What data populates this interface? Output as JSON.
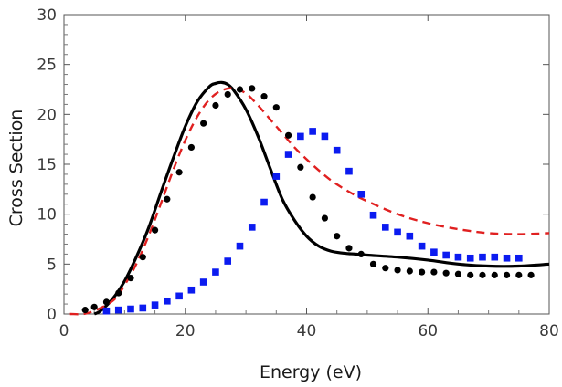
{
  "chart_data": {
    "type": "scatter",
    "title": "",
    "xlabel": "Energy (eV)",
    "ylabel": "Cross Section",
    "xlim": [
      0,
      80
    ],
    "ylim": [
      0,
      30
    ],
    "xticks": [
      0,
      20,
      40,
      60,
      80
    ],
    "yticks": [
      0,
      5,
      10,
      15,
      20,
      25,
      30
    ],
    "legend": "none",
    "grid": false,
    "series": [
      {
        "name": "black-solid-curve",
        "kind": "line",
        "color": "#000000",
        "dash": "solid",
        "x": [
          5,
          6,
          8,
          10,
          12,
          14,
          16,
          18,
          20,
          22,
          24,
          25,
          26,
          27,
          28,
          30,
          32,
          34,
          36,
          38,
          40,
          42,
          44,
          46,
          48,
          50,
          55,
          60,
          65,
          70,
          75,
          80
        ],
        "y": [
          0,
          0.3,
          1.5,
          3.3,
          5.8,
          8.7,
          12.2,
          15.6,
          18.8,
          21.3,
          22.8,
          23.1,
          23.2,
          23.0,
          22.4,
          20.5,
          17.8,
          14.6,
          11.5,
          9.4,
          7.8,
          6.8,
          6.3,
          6.1,
          6.0,
          5.9,
          5.7,
          5.4,
          5.0,
          4.8,
          4.8,
          5.0
        ]
      },
      {
        "name": "red-dashed-curve",
        "kind": "line",
        "color": "#e02020",
        "dash": "dashed",
        "x": [
          1,
          4,
          8,
          10,
          12,
          14,
          16,
          18,
          20,
          22,
          24,
          26,
          28,
          30,
          32,
          34,
          36,
          38,
          40,
          42,
          44,
          46,
          48,
          50,
          55,
          60,
          65,
          70,
          75,
          80
        ],
        "y": [
          0,
          0.1,
          1.3,
          2.9,
          5.1,
          7.9,
          11.1,
          14.4,
          17.4,
          19.8,
          21.5,
          22.4,
          22.6,
          22.1,
          20.9,
          19.5,
          18.1,
          16.7,
          15.5,
          14.4,
          13.4,
          12.6,
          11.9,
          11.3,
          10.0,
          9.1,
          8.5,
          8.1,
          8.0,
          8.1
        ]
      },
      {
        "name": "black-circle-points",
        "kind": "scatter",
        "marker": "circle",
        "color": "#000000",
        "x": [
          3.5,
          5,
          7,
          9,
          11,
          13,
          15,
          17,
          19,
          21,
          23,
          25,
          27,
          29,
          31,
          33,
          35,
          37,
          39,
          41,
          43,
          45,
          47,
          49,
          51,
          53,
          55,
          57,
          59,
          61,
          63,
          65,
          67,
          69,
          71,
          73,
          75,
          77
        ],
        "y": [
          0.4,
          0.7,
          1.2,
          2.1,
          3.6,
          5.7,
          8.4,
          11.5,
          14.2,
          16.7,
          19.1,
          20.9,
          22.0,
          22.5,
          22.6,
          21.8,
          20.7,
          17.9,
          14.7,
          11.7,
          9.6,
          7.8,
          6.6,
          6.0,
          5.0,
          4.6,
          4.4,
          4.3,
          4.2,
          4.2,
          4.1,
          4.0,
          3.9,
          3.9,
          3.9,
          3.9,
          3.9,
          3.9
        ]
      },
      {
        "name": "blue-square-points",
        "kind": "scatter",
        "marker": "square",
        "color": "#0b1bf0",
        "x": [
          7,
          9,
          11,
          13,
          15,
          17,
          19,
          21,
          23,
          25,
          27,
          29,
          31,
          33,
          35,
          37,
          39,
          41,
          43,
          45,
          47,
          49,
          51,
          53,
          55,
          57,
          59,
          61,
          63,
          65,
          67,
          69,
          71,
          73,
          75
        ],
        "y": [
          0.3,
          0.4,
          0.5,
          0.6,
          0.9,
          1.3,
          1.8,
          2.4,
          3.2,
          4.2,
          5.3,
          6.8,
          8.7,
          11.2,
          13.8,
          16.0,
          17.8,
          18.3,
          17.8,
          16.4,
          14.3,
          12.0,
          9.9,
          8.7,
          8.2,
          7.8,
          6.8,
          6.2,
          5.9,
          5.7,
          5.6,
          5.7,
          5.7,
          5.6,
          5.6
        ]
      }
    ]
  }
}
